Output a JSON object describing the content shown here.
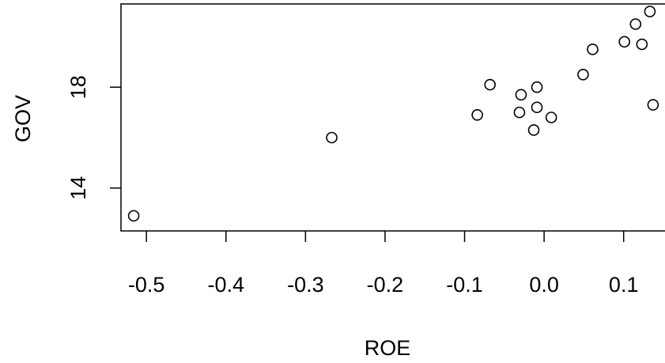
{
  "chart_data": {
    "type": "scatter",
    "title": "",
    "xlabel": "ROE",
    "ylabel": "GOV",
    "xlim": [
      -0.532,
      0.152
    ],
    "ylim": [
      12.3,
      21.3
    ],
    "x_ticks": [
      -0.5,
      -0.4,
      -0.3,
      -0.2,
      -0.1,
      0.0,
      0.1
    ],
    "x_tick_labels": [
      "-0.5",
      "-0.4",
      "-0.3",
      "-0.2",
      "-0.1",
      "0.0",
      "0.1"
    ],
    "y_ticks": [
      14,
      18
    ],
    "y_tick_labels": [
      "14",
      "18"
    ],
    "grid": false,
    "legend": "none",
    "marker": "open-circle",
    "color": "#000000",
    "points": [
      {
        "x": -0.516,
        "y": 12.9
      },
      {
        "x": -0.267,
        "y": 16.0
      },
      {
        "x": -0.084,
        "y": 16.9
      },
      {
        "x": -0.068,
        "y": 18.1
      },
      {
        "x": -0.031,
        "y": 17.0
      },
      {
        "x": -0.029,
        "y": 17.7
      },
      {
        "x": -0.013,
        "y": 16.3
      },
      {
        "x": -0.009,
        "y": 17.2
      },
      {
        "x": -0.009,
        "y": 18.0
      },
      {
        "x": 0.009,
        "y": 16.8
      },
      {
        "x": 0.049,
        "y": 18.5
      },
      {
        "x": 0.061,
        "y": 19.5
      },
      {
        "x": 0.101,
        "y": 19.8
      },
      {
        "x": 0.115,
        "y": 20.5
      },
      {
        "x": 0.123,
        "y": 19.7
      },
      {
        "x": 0.133,
        "y": 21.0
      },
      {
        "x": 0.137,
        "y": 17.3
      }
    ]
  }
}
